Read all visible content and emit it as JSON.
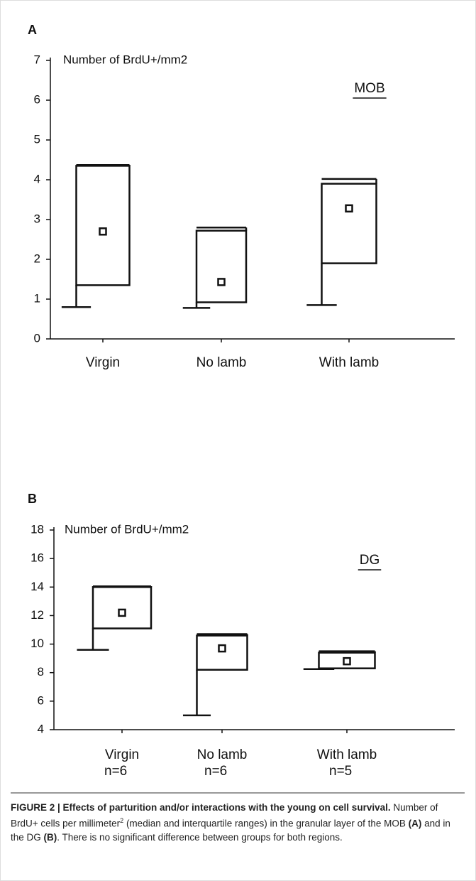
{
  "chart_data": [
    {
      "type": "box",
      "title": "A",
      "ylabel": "Number of BrdU+/mm2",
      "annotation": "MOB",
      "color": "#111111",
      "categories": [
        "Virgin",
        "No lamb",
        "With lamb"
      ],
      "boxes": [
        {
          "whisker_low": 0.8,
          "q1": 1.35,
          "median": 2.7,
          "q3": 4.35,
          "whisker_high": 4.37
        },
        {
          "whisker_low": 0.78,
          "q1": 0.92,
          "median": 1.43,
          "q3": 2.72,
          "whisker_high": 2.8
        },
        {
          "whisker_low": 0.85,
          "q1": 1.9,
          "median": 3.28,
          "q3": 3.9,
          "whisker_high": 4.02
        }
      ],
      "ylim": [
        0,
        7
      ],
      "yticks": [
        0,
        1,
        2,
        3,
        4,
        5,
        6,
        7
      ]
    },
    {
      "type": "box",
      "title": "B",
      "ylabel": "Number of BrdU+/mm2",
      "annotation": "DG",
      "color": "#111111",
      "categories": [
        "Virgin",
        "No lamb",
        "With lamb"
      ],
      "sublabels": [
        "n=6",
        "n=6",
        "n=5"
      ],
      "boxes": [
        {
          "whisker_low": 9.6,
          "q1": 11.1,
          "median": 12.2,
          "q3": 14.0,
          "whisker_high": 14.05
        },
        {
          "whisker_low": 5.0,
          "q1": 8.2,
          "median": 9.7,
          "q3": 10.6,
          "whisker_high": 10.7
        },
        {
          "whisker_low": 8.25,
          "q1": 8.3,
          "median": 8.8,
          "q3": 9.4,
          "whisker_high": 9.5
        }
      ],
      "ylim": [
        4,
        18
      ],
      "yticks": [
        4,
        6,
        8,
        10,
        12,
        14,
        16,
        18
      ]
    }
  ],
  "caption": {
    "parts": [
      {
        "text": "FIGURE 2 | Effects of parturition and/or interactions with the young on cell survival.",
        "bold": true
      },
      {
        "text": " Number of BrdU+ cells per millimeter"
      },
      {
        "text": "2",
        "sup": true
      },
      {
        "text": " (median and interquartile ranges) in the granular layer of the MOB "
      },
      {
        "text": "(A)",
        "bold": true
      },
      {
        "text": " and in the DG "
      },
      {
        "text": "(B)",
        "bold": true
      },
      {
        "text": ". There is no significant difference between groups for both regions."
      }
    ]
  }
}
